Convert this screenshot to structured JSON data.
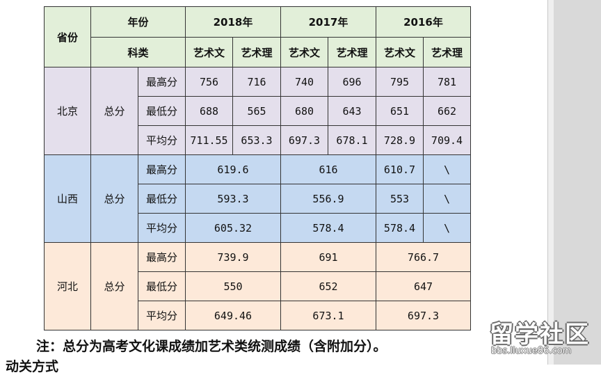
{
  "table": {
    "header": {
      "province": "省份",
      "year": "年份",
      "category": "科类",
      "years": [
        "2018年",
        "2017年",
        "2016年"
      ],
      "subjects": [
        "艺术文",
        "艺术理",
        "艺术文",
        "艺术理",
        "艺术文",
        "艺术理"
      ]
    },
    "provinces": [
      {
        "name": "北京",
        "type": "总分",
        "rows": [
          {
            "label": "最高分",
            "values": [
              "756",
              "716",
              "740",
              "696",
              "795",
              "781"
            ]
          },
          {
            "label": "最低分",
            "values": [
              "688",
              "565",
              "680",
              "643",
              "651",
              "662"
            ]
          },
          {
            "label": "平均分",
            "values": [
              "711.55",
              "653.3",
              "697.3",
              "678.1",
              "728.9",
              "709.4"
            ]
          }
        ]
      },
      {
        "name": "山西",
        "type": "总分",
        "rows": [
          {
            "label": "最高分",
            "values": [
              "619.6",
              "616",
              "610.7",
              "\\"
            ]
          },
          {
            "label": "最低分",
            "values": [
              "593.3",
              "556.9",
              "553",
              "\\"
            ]
          },
          {
            "label": "平均分",
            "values": [
              "605.32",
              "578.4",
              "578.4",
              "\\"
            ]
          }
        ]
      },
      {
        "name": "河北",
        "type": "总分",
        "rows": [
          {
            "label": "最高分",
            "values": [
              "739.9",
              "691",
              "766.7"
            ]
          },
          {
            "label": "最低分",
            "values": [
              "550",
              "652",
              "647"
            ]
          },
          {
            "label": "平均分",
            "values": [
              "649.46",
              "673.1",
              "697.3"
            ]
          }
        ]
      }
    ]
  },
  "note": "注：总分为高考文化课成绩加艺术类统测成绩（含附加分）。",
  "note_cut": "动关方式",
  "watermark": {
    "main": "留学社区",
    "url": "bbs.liuxue86.com"
  },
  "colors": {
    "header_bg": "#e2efd9",
    "beijing_bg": "#e4dfec",
    "shanxi_bg": "#c5d9f1",
    "hebei_bg": "#fde9d9"
  }
}
